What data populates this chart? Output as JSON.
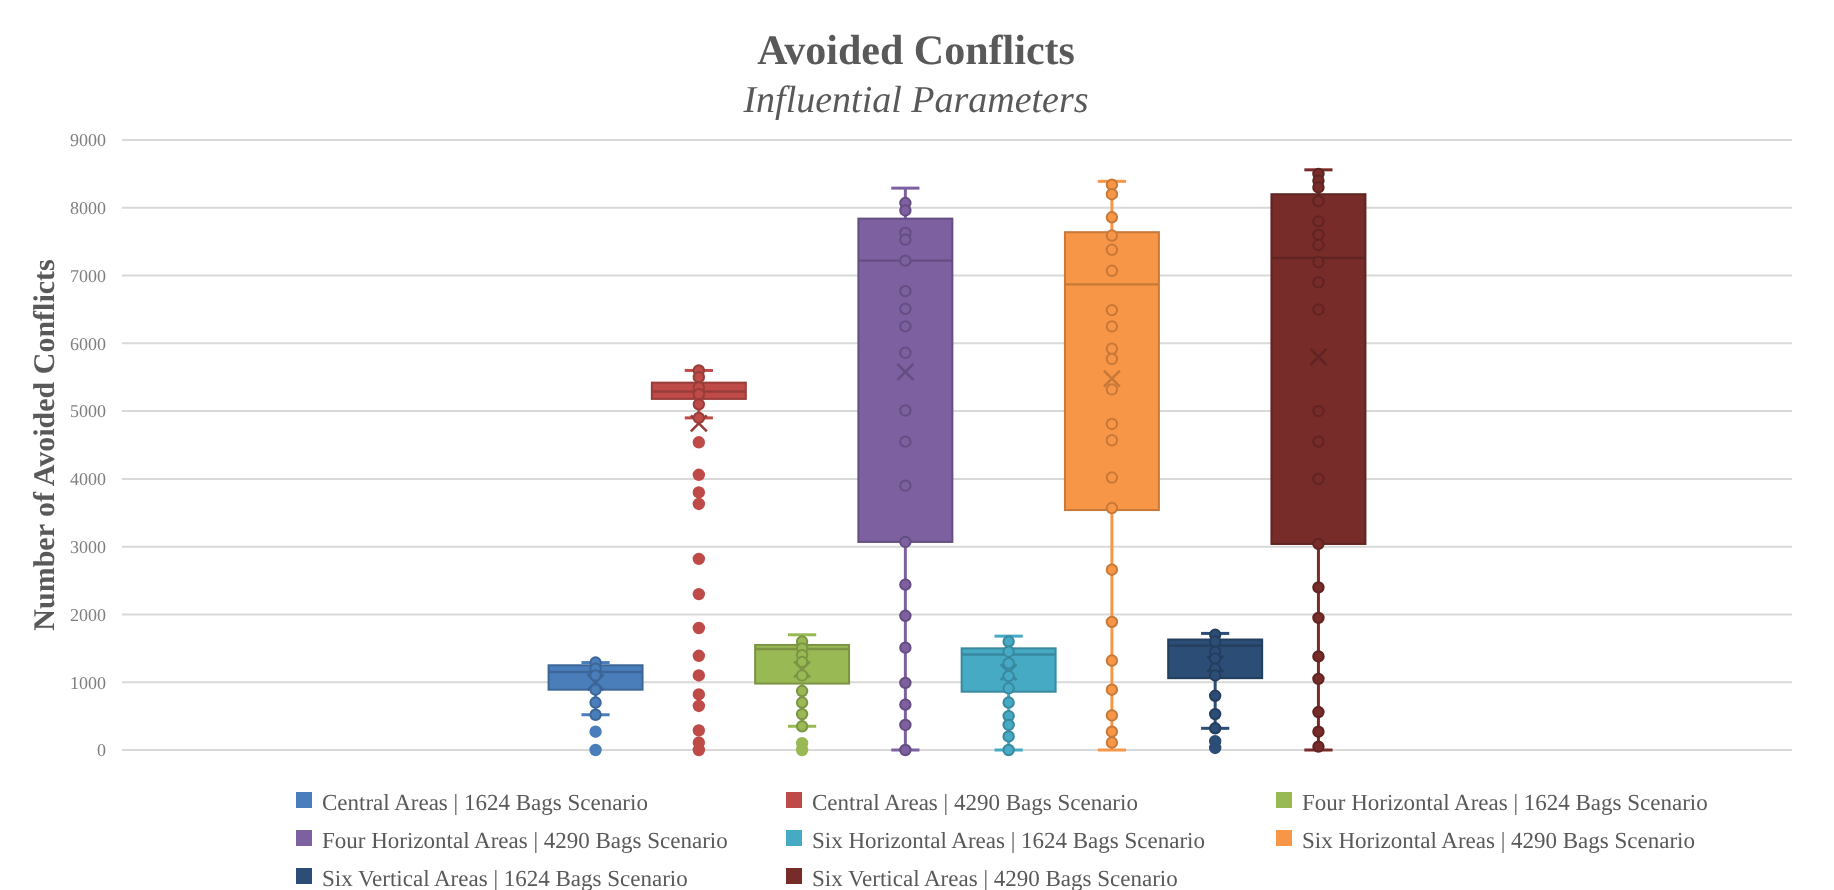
{
  "chart_data": {
    "type": "box",
    "title": "Avoided Conflicts",
    "subtitle": "Influential Parameters",
    "ylabel": "Number of Avoided Conflicts",
    "categories": [
      null
    ],
    "ylim": [
      0,
      9000
    ],
    "yticks": [
      0,
      1000,
      2000,
      3000,
      4000,
      5000,
      6000,
      7000,
      8000,
      9000
    ],
    "grid": "y",
    "legend": "bottom",
    "marker": "circle",
    "series": [
      {
        "name": "Central Areas | 1624 Bags Scenario",
        "color": "#4a7ebb",
        "boxes": [
          {
            "low": 520,
            "q1": 890,
            "median": 1150,
            "q3": 1250,
            "high": 1290,
            "mean": 1000,
            "outliers": [
              270,
              0
            ]
          }
        ]
      },
      {
        "name": "Central Areas | 4290 Bags Scenario",
        "color": "#be4b48",
        "boxes": [
          {
            "low": 4900,
            "q1": 5180,
            "median": 5290,
            "q3": 5420,
            "high": 5600,
            "mean": 4820,
            "outliers": [
              4540,
              4060,
              3800,
              3630,
              2820,
              2300,
              1800,
              1390,
              1100,
              820,
              650,
              290,
              110,
              0
            ]
          }
        ]
      },
      {
        "name": "Four Horizontal Areas | 1624 Bags Scenario",
        "color": "#98b954",
        "boxes": [
          {
            "low": 350,
            "q1": 980,
            "median": 1490,
            "q3": 1550,
            "high": 1700,
            "mean": 1190,
            "outliers": [
              100,
              0
            ]
          }
        ]
      },
      {
        "name": "Four Horizontal Areas | 4290 Bags Scenario",
        "color": "#7d60a0",
        "boxes": [
          {
            "low": 0,
            "q1": 3070,
            "median": 7220,
            "q3": 7840,
            "high": 8290,
            "mean": 5580
          }
        ]
      },
      {
        "name": "Six Horizontal Areas | 1624 Bags Scenario",
        "color": "#46aac5",
        "boxes": [
          {
            "low": 0,
            "q1": 860,
            "median": 1410,
            "q3": 1500,
            "high": 1680,
            "mean": 1150
          }
        ]
      },
      {
        "name": "Six Horizontal Areas | 4290 Bags Scenario",
        "color": "#f79646",
        "boxes": [
          {
            "low": 0,
            "q1": 3540,
            "median": 6870,
            "q3": 7640,
            "high": 8390,
            "mean": 5480
          }
        ]
      },
      {
        "name": "Six Vertical Areas | 1624 Bags Scenario",
        "color": "#2c4d75",
        "boxes": [
          {
            "low": 320,
            "q1": 1060,
            "median": 1540,
            "q3": 1630,
            "high": 1720,
            "mean": 1270,
            "outliers": [
              130,
              30
            ]
          }
        ]
      },
      {
        "name": "Six Vertical Areas | 4290 Bags Scenario",
        "color": "#772c2a",
        "boxes": [
          {
            "low": 0,
            "q1": 3040,
            "median": 7260,
            "q3": 8200,
            "high": 8560,
            "mean": 5800
          }
        ]
      },
      {
        "type": "scatter",
        "color": "#4a7ebb",
        "x": [
          null,
          null,
          null,
          null,
          null,
          null
        ],
        "values": [
          1290,
          1200,
          1100,
          890,
          700,
          520
        ]
      },
      {
        "type": "scatter",
        "color": "#be4b48",
        "x": [
          null,
          null,
          null,
          null,
          null,
          null
        ],
        "values": [
          5600,
          5500,
          5350,
          5250,
          5100,
          4900
        ]
      },
      {
        "type": "scatter",
        "color": "#98b954",
        "x": [
          null,
          null,
          null,
          null,
          null,
          null,
          null,
          null,
          null
        ],
        "values": [
          1600,
          1500,
          1400,
          1300,
          1100,
          870,
          700,
          530,
          350
        ]
      },
      {
        "type": "scatter",
        "color": "#7d60a0",
        "x": [
          null,
          null,
          null,
          null,
          null,
          null,
          null,
          null,
          null,
          null,
          null,
          null,
          null,
          null,
          null,
          null,
          null,
          null,
          null,
          null
        ],
        "values": [
          8070,
          7960,
          7630,
          7530,
          7220,
          6770,
          6510,
          6250,
          5860,
          5010,
          4550,
          3900,
          3070,
          2440,
          1980,
          1510,
          990,
          670,
          370,
          0
        ]
      },
      {
        "type": "scatter",
        "color": "#46aac5",
        "x": [
          null,
          null,
          null,
          null,
          null,
          null,
          null,
          null,
          null,
          null
        ],
        "values": [
          1600,
          1450,
          1280,
          1090,
          910,
          700,
          500,
          370,
          200,
          0
        ]
      },
      {
        "type": "scatter",
        "color": "#f79646",
        "x": [
          null,
          null,
          null,
          null,
          null,
          null,
          null,
          null,
          null,
          null,
          null,
          null,
          null,
          null,
          null,
          null,
          null,
          null,
          null,
          null,
          null,
          null
        ],
        "values": [
          8340,
          8200,
          7860,
          7590,
          7380,
          7070,
          6490,
          6250,
          5920,
          5770,
          5320,
          4810,
          4570,
          4020,
          3570,
          2660,
          1890,
          1320,
          890,
          510,
          270,
          110
        ]
      },
      {
        "type": "scatter",
        "color": "#2c4d75",
        "x": [
          null,
          null,
          null,
          null,
          null,
          null,
          null,
          null,
          null
        ],
        "values": [
          1700,
          1600,
          1450,
          1350,
          1200,
          1100,
          800,
          530,
          320
        ]
      },
      {
        "type": "scatter",
        "color": "#772c2a",
        "x": [
          null,
          null,
          null,
          null,
          null,
          null,
          null,
          null,
          null,
          null,
          null,
          null,
          null,
          null,
          null,
          null,
          null,
          null,
          null,
          null,
          null
        ],
        "values": [
          8500,
          8400,
          8300,
          8100,
          7800,
          7600,
          7450,
          7200,
          6900,
          6500,
          5000,
          4550,
          4000,
          3040,
          2400,
          1950,
          1380,
          1050,
          560,
          270,
          50
        ]
      }
    ]
  }
}
